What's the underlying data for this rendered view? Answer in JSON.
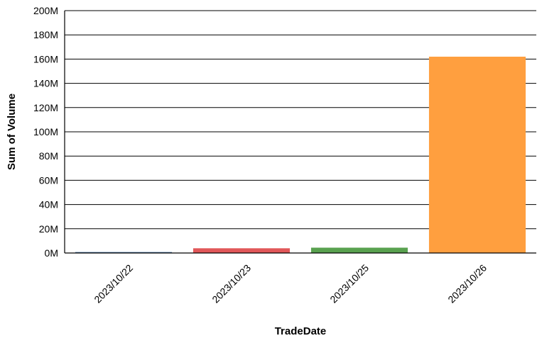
{
  "chart_data": {
    "type": "bar",
    "title": "",
    "xlabel": "TradeDate",
    "ylabel": "Sum of Volume",
    "categories": [
      "2023/10/22",
      "2023/10/23",
      "2023/10/25",
      "2023/10/26"
    ],
    "values": [
      800000,
      3900000,
      4400000,
      162000000
    ],
    "colors": [
      "#4e79a7",
      "#e15759",
      "#59a14f",
      "#ff9f3f"
    ],
    "ylim": [
      0,
      200000000
    ],
    "yticks": [
      0,
      20000000,
      40000000,
      60000000,
      80000000,
      100000000,
      120000000,
      140000000,
      160000000,
      180000000,
      200000000
    ],
    "ytick_labels": [
      "0M",
      "20M",
      "40M",
      "60M",
      "80M",
      "100M",
      "120M",
      "140M",
      "160M",
      "180M",
      "200M"
    ],
    "grid": true,
    "legend": "none"
  }
}
